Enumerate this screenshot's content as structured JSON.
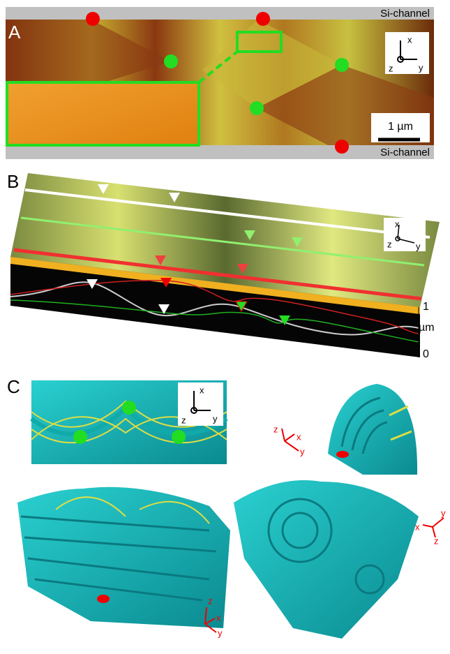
{
  "panel_a": {
    "label": "A",
    "channel_top": "Si-channel",
    "channel_bottom": "Si-channel",
    "scale_bar": "1 µm",
    "axes": [
      "x",
      "z",
      "y"
    ]
  },
  "panel_b": {
    "label": "B",
    "axes": [
      "x",
      "z",
      "y"
    ],
    "height_axis": {
      "top": "1",
      "unit": "µm",
      "bottom": "0"
    }
  },
  "panel_c": {
    "label": "C",
    "axes_top_left": [
      "x",
      "z",
      "y"
    ],
    "axes_top_right": [
      "z",
      "x",
      "y"
    ],
    "axes_bottom_left": [
      "z",
      "x",
      "y"
    ],
    "axes_bottom_right": [
      "y",
      "x",
      "z"
    ]
  }
}
